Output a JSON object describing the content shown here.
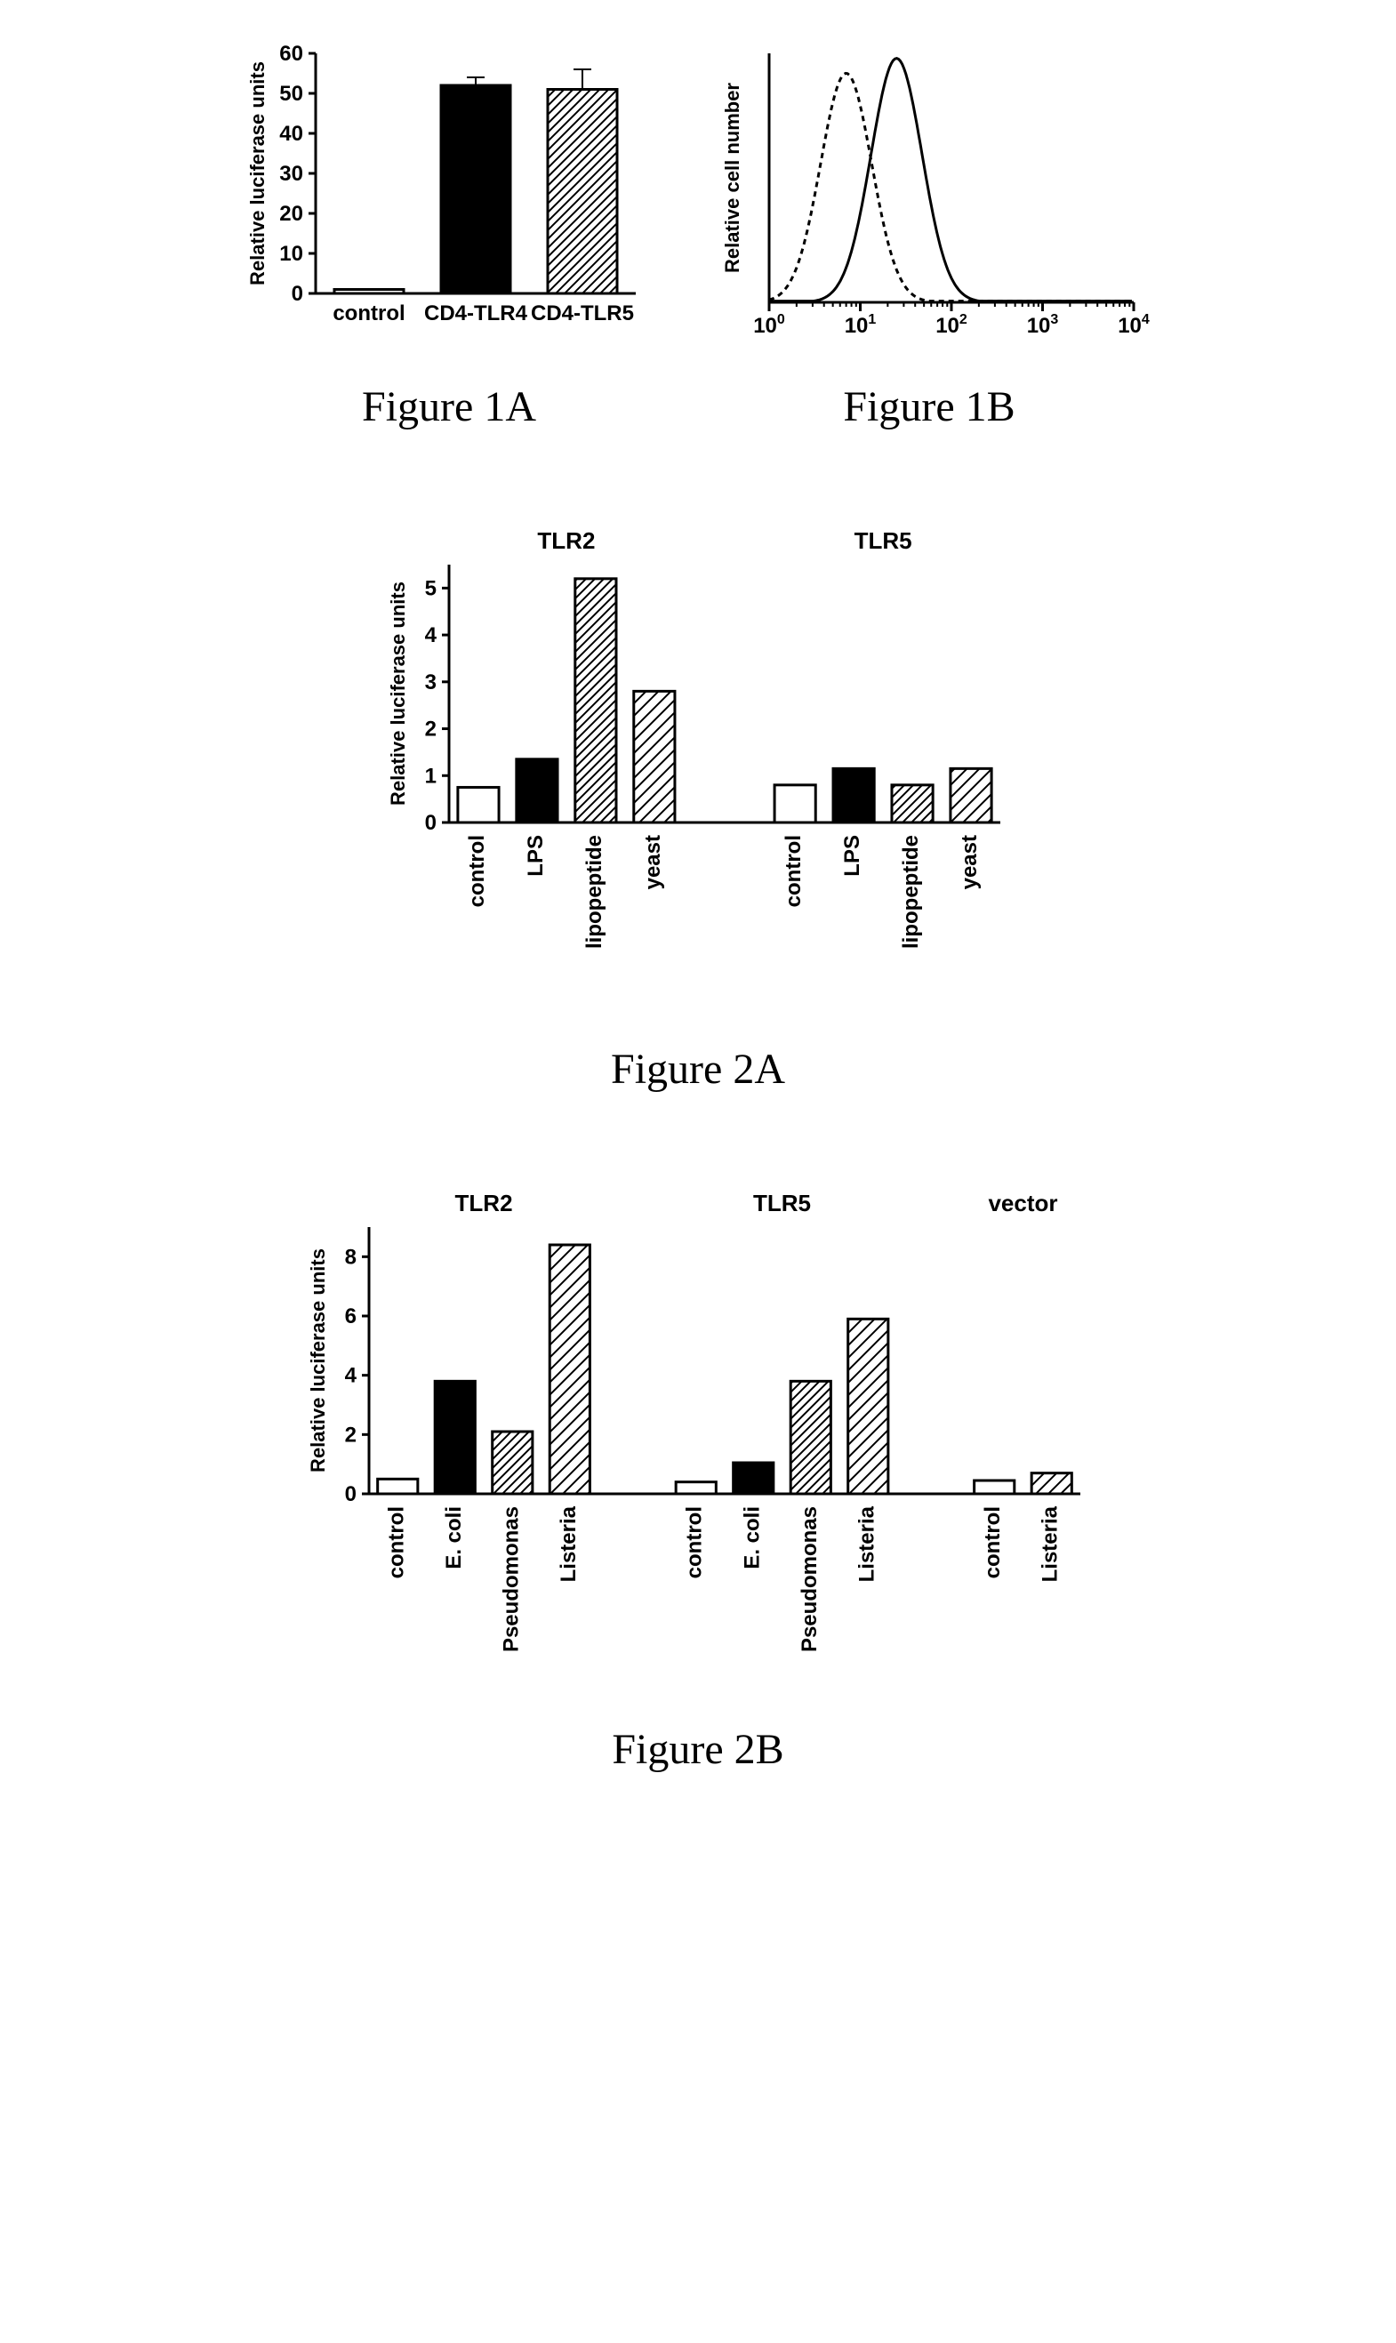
{
  "fig1a": {
    "type": "bar",
    "ylabel": "Relative luciferase units",
    "label_fontsize": 22,
    "ylim": [
      0,
      60
    ],
    "ytick_step": 10,
    "categories": [
      "control",
      "CD4-TLR4",
      "CD4-TLR5"
    ],
    "values": [
      1,
      52,
      51
    ],
    "errors": [
      0,
      2,
      5
    ],
    "fills": [
      "white",
      "black",
      "hatch-bw"
    ],
    "bar_stroke": "#000000",
    "axis_color": "#000000",
    "background": "#ffffff",
    "caption": "Figure 1A"
  },
  "fig1b": {
    "type": "line",
    "ylabel": "Relative cell number",
    "label_fontsize": 22,
    "xscale": "log",
    "xlim": [
      1,
      10000
    ],
    "xticks": [
      "10⁰",
      "10¹",
      "10²",
      "10³",
      "10⁴"
    ],
    "series": [
      {
        "name": "dotted",
        "dash": "4,4",
        "color": "#000000",
        "peak_x": 7,
        "peak_y": 0.92
      },
      {
        "name": "solid",
        "dash": "none",
        "color": "#000000",
        "peak_x": 25,
        "peak_y": 0.98
      }
    ],
    "axis_color": "#000000",
    "background": "#ffffff",
    "caption": "Figure 1B"
  },
  "fig2a": {
    "type": "grouped-bar",
    "ylabel": "Relative luciferase units",
    "label_fontsize": 22,
    "ylim": [
      0,
      5.5
    ],
    "yticks": [
      0,
      1,
      2,
      3,
      4,
      5
    ],
    "groups": [
      {
        "title": "TLR2",
        "categories": [
          "control",
          "LPS",
          "lipopeptide",
          "yeast"
        ],
        "values": [
          0.75,
          1.35,
          5.2,
          2.8
        ],
        "fills": [
          "white",
          "black",
          "hatch-bw",
          "hatch-sparse"
        ]
      },
      {
        "title": "TLR5",
        "categories": [
          "control",
          "LPS",
          "lipopeptide",
          "yeast"
        ],
        "values": [
          0.8,
          1.15,
          0.8,
          1.15
        ],
        "fills": [
          "white",
          "black",
          "hatch-bw",
          "hatch-sparse"
        ]
      }
    ],
    "bar_stroke": "#000000",
    "axis_color": "#000000",
    "background": "#ffffff",
    "caption": "Figure 2A"
  },
  "fig2b": {
    "type": "grouped-bar",
    "ylabel": "Relative luciferase units",
    "label_fontsize": 22,
    "ylim": [
      0,
      9
    ],
    "yticks": [
      0,
      2,
      4,
      6,
      8
    ],
    "groups": [
      {
        "title": "TLR2",
        "categories": [
          "control",
          "E. coli",
          "Pseudomonas",
          "Listeria"
        ],
        "values": [
          0.5,
          3.8,
          2.1,
          8.4
        ],
        "fills": [
          "white",
          "black",
          "hatch-bw",
          "hatch-sparse"
        ]
      },
      {
        "title": "TLR5",
        "categories": [
          "control",
          "E. coli",
          "Pseudomonas",
          "Listeria"
        ],
        "values": [
          0.4,
          1.05,
          3.8,
          5.9
        ],
        "fills": [
          "white",
          "black",
          "hatch-bw",
          "hatch-sparse"
        ]
      },
      {
        "title": "vector",
        "categories": [
          "control",
          "Listeria"
        ],
        "values": [
          0.45,
          0.7
        ],
        "fills": [
          "white",
          "hatch-sparse"
        ]
      }
    ],
    "bar_stroke": "#000000",
    "axis_color": "#000000",
    "background": "#ffffff",
    "caption": "Figure 2B"
  }
}
